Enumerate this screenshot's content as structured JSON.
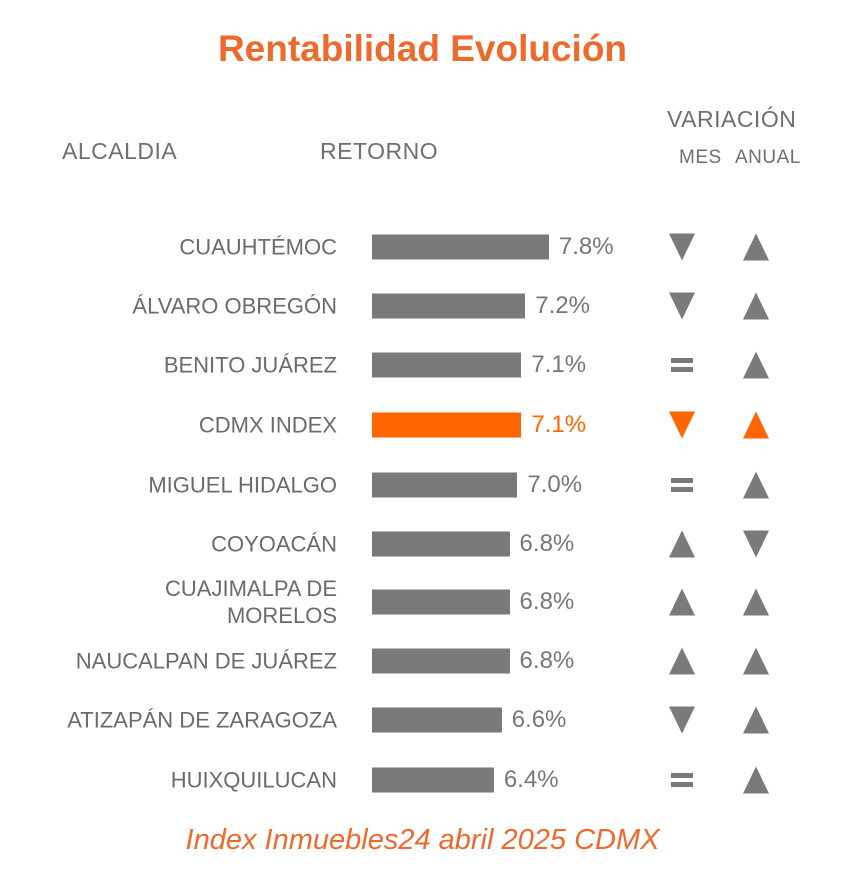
{
  "chart_data": {
    "type": "bar",
    "orientation": "horizontal",
    "title": "Rentabilidad Evolución",
    "footer": "Index Inmuebles24 abril 2025 CDMX",
    "headers": {
      "alcaldia": "ALCALDIA",
      "retorno": "RETORNO",
      "variacion": "VARIACIÓN",
      "mes": "MES",
      "anual": "ANUAL"
    },
    "colors": {
      "default": "#7a7a7a",
      "highlight": "#FF6600",
      "title": "#EE6A2C"
    },
    "rows": [
      {
        "label": "CUAUHTÉMOC",
        "value": 7.8,
        "display": "7.8%",
        "mes": "down",
        "anual": "up",
        "highlight": false
      },
      {
        "label": "ÁLVARO OBREGÓN",
        "value": 7.2,
        "display": "7.2%",
        "mes": "down",
        "anual": "up",
        "highlight": false
      },
      {
        "label": "BENITO JUÁREZ",
        "value": 7.1,
        "display": "7.1%",
        "mes": "equal",
        "anual": "up",
        "highlight": false
      },
      {
        "label": "CDMX INDEX",
        "value": 7.1,
        "display": "7.1%",
        "mes": "down",
        "anual": "up",
        "highlight": true
      },
      {
        "label": "MIGUEL HIDALGO",
        "value": 7.0,
        "display": "7.0%",
        "mes": "equal",
        "anual": "up",
        "highlight": false
      },
      {
        "label": "COYOACÁN",
        "value": 6.8,
        "display": "6.8%",
        "mes": "up",
        "anual": "down",
        "highlight": false
      },
      {
        "label": "CUAJIMALPA DE MORELOS",
        "value": 6.8,
        "display": "6.8%",
        "mes": "up",
        "anual": "up",
        "highlight": false
      },
      {
        "label": "NAUCALPAN DE JUÁREZ",
        "value": 6.8,
        "display": "6.8%",
        "mes": "up",
        "anual": "up",
        "highlight": false
      },
      {
        "label": "ATIZAPÁN DE ZARAGOZA",
        "value": 6.6,
        "display": "6.6%",
        "mes": "down",
        "anual": "up",
        "highlight": false
      },
      {
        "label": "HUIXQUILUCAN",
        "value": 6.4,
        "display": "6.4%",
        "mes": "equal",
        "anual": "up",
        "highlight": false
      }
    ]
  }
}
